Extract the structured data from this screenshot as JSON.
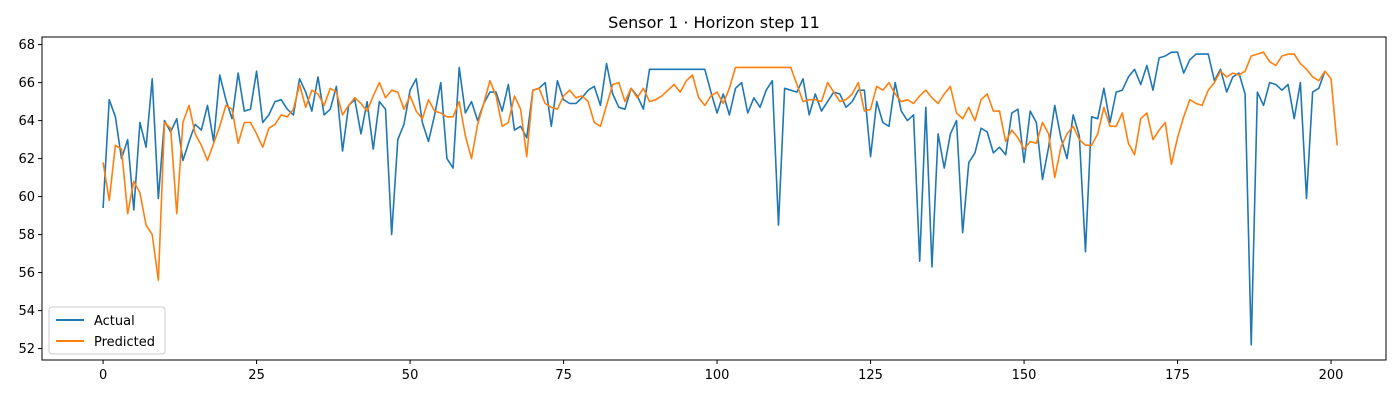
{
  "chart_data": {
    "type": "line",
    "title": "Sensor 1 · Horizon step 11",
    "xlabel": "",
    "ylabel": "",
    "xlim": [
      -9.95,
      208.95
    ],
    "ylim": [
      51.4,
      68.4
    ],
    "xticks": [
      0,
      25,
      50,
      75,
      100,
      125,
      150,
      175,
      200
    ],
    "yticks": [
      52,
      54,
      56,
      58,
      60,
      62,
      64,
      66,
      68
    ],
    "grid": false,
    "legend_position": "lower-left",
    "series": [
      {
        "name": "Actual",
        "color": "#1f77b4",
        "values": [
          59.4,
          65.1,
          64.2,
          62.0,
          63.0,
          59.3,
          63.9,
          62.6,
          66.2,
          59.9,
          64.0,
          63.4,
          64.1,
          61.9,
          62.9,
          63.8,
          63.5,
          64.8,
          62.9,
          66.4,
          65.1,
          64.1,
          66.5,
          64.5,
          64.6,
          66.6,
          63.9,
          64.3,
          65.0,
          65.1,
          64.6,
          64.3,
          66.2,
          65.5,
          64.5,
          66.3,
          64.3,
          64.6,
          65.8,
          62.4,
          64.8,
          65.1,
          63.3,
          65.0,
          62.5,
          65.0,
          64.6,
          58.0,
          63.0,
          63.8,
          65.6,
          66.2,
          63.9,
          62.9,
          64.3,
          66.0,
          62.0,
          61.5,
          66.8,
          64.4,
          65.0,
          64.0,
          64.9,
          65.5,
          65.5,
          64.5,
          65.9,
          63.5,
          63.7,
          63.1,
          65.6,
          65.7,
          66.0,
          63.7,
          66.1,
          65.1,
          64.9,
          64.9,
          65.2,
          65.6,
          65.8,
          64.8,
          67.0,
          65.4,
          64.7,
          64.6,
          65.7,
          65.3,
          64.6,
          66.7,
          66.7,
          66.7,
          66.7,
          66.7,
          66.7,
          66.7,
          66.7,
          66.7,
          66.7,
          65.5,
          64.4,
          65.4,
          64.3,
          65.7,
          66.0,
          64.4,
          65.2,
          64.7,
          65.6,
          66.1,
          58.5,
          65.7,
          65.6,
          65.5,
          66.2,
          64.3,
          65.4,
          64.5,
          65.0,
          65.5,
          65.4,
          64.7,
          65.0,
          65.6,
          65.6,
          62.1,
          65.0,
          63.9,
          63.7,
          66.0,
          64.5,
          64.0,
          64.3,
          56.6,
          64.7,
          56.3,
          63.3,
          61.5,
          63.3,
          64.0,
          58.1,
          61.8,
          62.3,
          63.6,
          63.4,
          62.3,
          62.6,
          62.2,
          64.4,
          64.6,
          61.8,
          64.5,
          63.9,
          60.9,
          62.6,
          64.8,
          63.1,
          62.0,
          64.3,
          63.2,
          57.1,
          64.2,
          64.1,
          65.7,
          63.9,
          65.5,
          65.6,
          66.3,
          66.7,
          65.9,
          66.9,
          65.6,
          67.3,
          67.4,
          67.6,
          67.6,
          66.5,
          67.2,
          67.5,
          67.5,
          67.5,
          66.1,
          66.7,
          65.5,
          66.3,
          66.5,
          65.4,
          52.2,
          65.5,
          64.8,
          66.0,
          65.9,
          65.6,
          65.9,
          64.1,
          66.0,
          59.9,
          65.5,
          65.7,
          66.6
        ]
      },
      {
        "name": "Predicted",
        "color": "#ff7f0e",
        "values": [
          61.8,
          59.8,
          62.7,
          62.5,
          59.1,
          60.8,
          60.2,
          58.5,
          58.0,
          55.6,
          63.9,
          63.6,
          59.1,
          63.9,
          64.8,
          63.3,
          62.7,
          61.9,
          62.8,
          63.7,
          64.8,
          64.6,
          62.8,
          63.9,
          63.9,
          63.3,
          62.6,
          63.6,
          63.8,
          64.3,
          64.2,
          64.6,
          65.9,
          64.7,
          65.6,
          65.4,
          64.8,
          65.7,
          65.5,
          64.3,
          64.8,
          65.2,
          64.9,
          64.5,
          65.3,
          66.0,
          65.2,
          65.6,
          65.5,
          64.6,
          65.3,
          64.5,
          64.1,
          65.1,
          64.5,
          64.4,
          64.2,
          64.2,
          65.0,
          63.2,
          62.0,
          63.8,
          64.9,
          66.1,
          65.3,
          63.7,
          63.9,
          65.3,
          64.6,
          62.1,
          65.6,
          65.7,
          64.9,
          64.7,
          64.6,
          65.3,
          65.6,
          65.2,
          65.3,
          65.0,
          63.9,
          63.7,
          64.8,
          65.9,
          66.0,
          65.0,
          65.7,
          65.2,
          65.7,
          65.0,
          65.1,
          65.3,
          65.6,
          65.9,
          65.5,
          66.1,
          66.4,
          65.2,
          64.8,
          65.3,
          65.5,
          64.9,
          65.7,
          66.8,
          66.8,
          66.8,
          66.8,
          66.8,
          66.8,
          66.8,
          66.8,
          66.8,
          66.8,
          65.9,
          65.0,
          65.1,
          65.1,
          65.0,
          66.0,
          65.5,
          65.0,
          65.1,
          65.4,
          66.0,
          64.5,
          64.6,
          65.8,
          65.6,
          66.0,
          65.4,
          65.0,
          65.1,
          64.9,
          65.3,
          65.6,
          65.2,
          64.9,
          65.4,
          65.8,
          64.4,
          64.1,
          64.7,
          64.0,
          65.1,
          65.4,
          64.5,
          64.5,
          62.9,
          63.5,
          63.1,
          62.5,
          62.9,
          62.8,
          63.9,
          63.3,
          61.0,
          62.6,
          63.3,
          63.7,
          63.0,
          62.7,
          62.7,
          63.3,
          64.7,
          63.7,
          63.7,
          64.4,
          62.8,
          62.2,
          64.1,
          64.4,
          63.0,
          63.5,
          63.9,
          61.7,
          63.1,
          64.2,
          65.1,
          64.9,
          64.8,
          65.6,
          66.0,
          66.6,
          66.3,
          66.5,
          66.4,
          66.6,
          67.4,
          67.5,
          67.6,
          67.1,
          66.9,
          67.4,
          67.5,
          67.5,
          67.0,
          66.7,
          66.3,
          66.1,
          66.6,
          66.2,
          62.7
        ]
      }
    ]
  }
}
